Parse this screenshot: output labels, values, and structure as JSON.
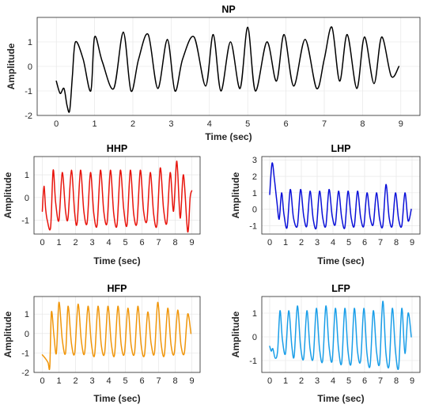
{
  "chart_data": [
    {
      "type": "line",
      "title": "NP",
      "xlabel": "Time (sec)",
      "ylabel": "Amplitude",
      "xlim": [
        -0.5,
        9.5
      ],
      "ylim": [
        -2,
        2
      ],
      "xticks": [
        0,
        1,
        2,
        3,
        4,
        5,
        6,
        7,
        8,
        9
      ],
      "yticks": [
        -2,
        -1,
        0,
        1
      ],
      "grid": true,
      "color": "#000000",
      "series": [
        {
          "x": [
            0.0,
            0.1,
            0.2,
            0.28,
            0.35,
            0.42,
            0.5,
            0.7,
            0.9,
            1.0,
            1.2,
            1.5,
            1.75,
            1.95,
            2.15,
            2.4,
            2.65,
            2.9,
            3.1,
            3.3,
            3.6,
            3.9,
            4.1,
            4.3,
            4.55,
            4.8,
            5.0,
            5.2,
            5.5,
            5.75,
            5.95,
            6.2,
            6.5,
            6.8,
            7.0,
            7.2,
            7.4,
            7.6,
            7.85,
            8.05,
            8.3,
            8.5,
            8.75,
            8.95
          ],
          "y": [
            -0.6,
            -1.1,
            -0.9,
            -1.6,
            -1.8,
            -0.4,
            1.0,
            0.3,
            -1.0,
            1.2,
            0.2,
            -0.9,
            1.4,
            -1.0,
            0.3,
            1.3,
            -0.9,
            1.1,
            -1.0,
            0.3,
            1.2,
            -0.8,
            1.3,
            -1.0,
            1.0,
            -0.9,
            1.6,
            -1.0,
            1.0,
            -0.6,
            1.3,
            -0.8,
            1.1,
            -0.9,
            0.3,
            1.6,
            -0.6,
            1.3,
            -0.9,
            1.2,
            -0.7,
            1.2,
            -0.4,
            0.0
          ]
        }
      ]
    },
    {
      "type": "line",
      "title": "HHP",
      "xlabel": "Time (sec)",
      "ylabel": "Amplitude",
      "xlim": [
        -0.5,
        9.5
      ],
      "ylim": [
        -1.6,
        1.8
      ],
      "xticks": [
        0,
        1,
        2,
        3,
        4,
        5,
        6,
        7,
        8,
        9
      ],
      "yticks": [
        -1,
        0,
        1
      ],
      "grid": true,
      "color": "#e8140c",
      "series": [
        {
          "x": [
            0.0,
            0.1,
            0.2,
            0.3,
            0.5,
            0.65,
            0.8,
            1.0,
            1.2,
            1.4,
            1.55,
            1.75,
            1.95,
            2.1,
            2.3,
            2.5,
            2.7,
            2.9,
            3.1,
            3.3,
            3.5,
            3.7,
            3.9,
            4.1,
            4.3,
            4.5,
            4.7,
            4.9,
            5.1,
            5.3,
            5.5,
            5.7,
            5.9,
            6.1,
            6.3,
            6.5,
            6.7,
            6.9,
            7.1,
            7.3,
            7.5,
            7.7,
            7.9,
            8.1,
            8.3,
            8.5,
            8.75,
            8.9,
            9.0
          ],
          "y": [
            -0.6,
            0.5,
            -0.5,
            -1.0,
            -1.3,
            1.2,
            -0.2,
            -1.0,
            1.1,
            -0.6,
            -0.9,
            1.2,
            -0.7,
            -1.1,
            1.2,
            -0.6,
            -1.1,
            1.1,
            -0.7,
            -1.2,
            1.2,
            -0.6,
            -1.1,
            1.2,
            -0.7,
            -1.2,
            1.2,
            -0.5,
            -1.2,
            1.2,
            -0.7,
            -1.1,
            1.2,
            -0.6,
            -1.0,
            1.1,
            -0.7,
            -1.2,
            1.3,
            -0.5,
            -1.1,
            1.1,
            -0.6,
            1.6,
            -0.9,
            1.0,
            -1.5,
            0.0,
            0.3
          ]
        }
      ]
    },
    {
      "type": "line",
      "title": "LHP",
      "xlabel": "Time (sec)",
      "ylabel": "Amplitude",
      "xlim": [
        -0.5,
        9.5
      ],
      "ylim": [
        -1.5,
        3.2
      ],
      "xticks": [
        0,
        1,
        2,
        3,
        4,
        5,
        6,
        7,
        8,
        9
      ],
      "yticks": [
        -1,
        0,
        1,
        2,
        3
      ],
      "grid": true,
      "color": "#0a10d8",
      "series": [
        {
          "x": [
            0.0,
            0.15,
            0.3,
            0.45,
            0.6,
            0.75,
            0.9,
            1.1,
            1.3,
            1.5,
            1.75,
            1.95,
            2.15,
            2.35,
            2.55,
            2.75,
            2.95,
            3.15,
            3.35,
            3.55,
            3.75,
            3.95,
            4.15,
            4.35,
            4.55,
            4.75,
            4.95,
            5.15,
            5.35,
            5.55,
            5.75,
            5.95,
            6.15,
            6.35,
            6.55,
            6.75,
            6.95,
            7.15,
            7.35,
            7.55,
            7.75,
            7.95,
            8.15,
            8.35,
            8.55,
            8.75,
            8.95
          ],
          "y": [
            0.9,
            2.8,
            1.8,
            0.5,
            -0.6,
            1.0,
            -0.3,
            -1.1,
            1.2,
            -0.5,
            -1.0,
            1.2,
            -0.4,
            -1.0,
            1.1,
            -0.6,
            -1.1,
            1.1,
            -0.5,
            -1.0,
            1.2,
            -0.4,
            -0.9,
            1.1,
            -0.5,
            -1.1,
            1.1,
            -0.5,
            -1.0,
            1.1,
            -0.5,
            -1.0,
            1.0,
            -0.5,
            -0.9,
            1.0,
            -0.6,
            -1.0,
            1.5,
            -0.5,
            -1.0,
            1.0,
            -0.6,
            -1.0,
            1.0,
            -0.7,
            0.0
          ]
        }
      ]
    },
    {
      "type": "line",
      "title": "HFP",
      "xlabel": "Time (sec)",
      "ylabel": "Amplitude",
      "xlim": [
        -0.5,
        9.5
      ],
      "ylim": [
        -2,
        1.9
      ],
      "xticks": [
        0,
        1,
        2,
        3,
        4,
        5,
        6,
        7,
        8,
        9
      ],
      "yticks": [
        -2,
        -1,
        0,
        1
      ],
      "grid": true,
      "color": "#f0960a",
      "series": [
        {
          "x": [
            0.0,
            0.2,
            0.35,
            0.45,
            0.55,
            0.7,
            0.85,
            1.0,
            1.2,
            1.4,
            1.55,
            1.75,
            1.95,
            2.15,
            2.35,
            2.55,
            2.75,
            2.95,
            3.15,
            3.35,
            3.55,
            3.75,
            3.95,
            4.15,
            4.35,
            4.55,
            4.75,
            4.95,
            5.15,
            5.35,
            5.55,
            5.75,
            5.95,
            6.15,
            6.35,
            6.55,
            6.75,
            6.95,
            7.15,
            7.35,
            7.55,
            7.75,
            7.95,
            8.15,
            8.35,
            8.55,
            8.75,
            8.95
          ],
          "y": [
            -1.1,
            -1.3,
            -1.5,
            -1.7,
            1.1,
            -0.1,
            -1.0,
            1.6,
            -0.3,
            -1.0,
            1.4,
            -0.5,
            -1.0,
            1.5,
            -0.4,
            -1.0,
            1.4,
            -0.5,
            -1.1,
            1.4,
            -0.6,
            -1.0,
            1.4,
            -0.5,
            -1.1,
            1.4,
            -0.6,
            -1.0,
            1.3,
            -0.6,
            -1.0,
            1.4,
            -0.6,
            -1.1,
            1.1,
            -0.5,
            -1.0,
            1.6,
            -0.5,
            -1.1,
            1.3,
            -0.6,
            -1.0,
            1.2,
            -0.6,
            -1.0,
            1.0,
            0.0
          ]
        }
      ]
    },
    {
      "type": "line",
      "title": "LFP",
      "xlabel": "Time (sec)",
      "ylabel": "Amplitude",
      "xlim": [
        -0.5,
        9.5
      ],
      "ylim": [
        -1.5,
        1.7
      ],
      "xticks": [
        0,
        1,
        2,
        3,
        4,
        5,
        6,
        7,
        8,
        9
      ],
      "yticks": [
        -1,
        0,
        1
      ],
      "grid": true,
      "color": "#1a9ee8",
      "series": [
        {
          "x": [
            0.0,
            0.1,
            0.2,
            0.35,
            0.5,
            0.65,
            0.8,
            1.0,
            1.2,
            1.4,
            1.55,
            1.75,
            1.95,
            2.15,
            2.35,
            2.55,
            2.75,
            2.95,
            3.15,
            3.35,
            3.55,
            3.75,
            3.95,
            4.15,
            4.35,
            4.55,
            4.75,
            4.95,
            5.15,
            5.35,
            5.55,
            5.75,
            5.95,
            6.15,
            6.35,
            6.55,
            6.75,
            6.95,
            7.15,
            7.35,
            7.55,
            7.75,
            7.95,
            8.15,
            8.35,
            8.55,
            8.75,
            8.95
          ],
          "y": [
            -0.4,
            -0.6,
            -0.5,
            -0.9,
            -0.6,
            1.1,
            -0.1,
            -0.7,
            1.1,
            -0.4,
            -0.8,
            1.3,
            -0.4,
            -0.9,
            1.1,
            -0.5,
            -0.9,
            1.2,
            -0.5,
            -1.0,
            1.3,
            -0.4,
            -1.0,
            1.2,
            -0.5,
            -1.1,
            1.2,
            -0.6,
            -1.1,
            1.2,
            -0.6,
            -1.0,
            1.2,
            -0.7,
            -1.2,
            1.1,
            -0.6,
            -1.1,
            1.5,
            -0.7,
            -1.2,
            1.2,
            -0.6,
            -1.3,
            1.2,
            -0.7,
            1.0,
            0.0
          ]
        }
      ]
    }
  ]
}
